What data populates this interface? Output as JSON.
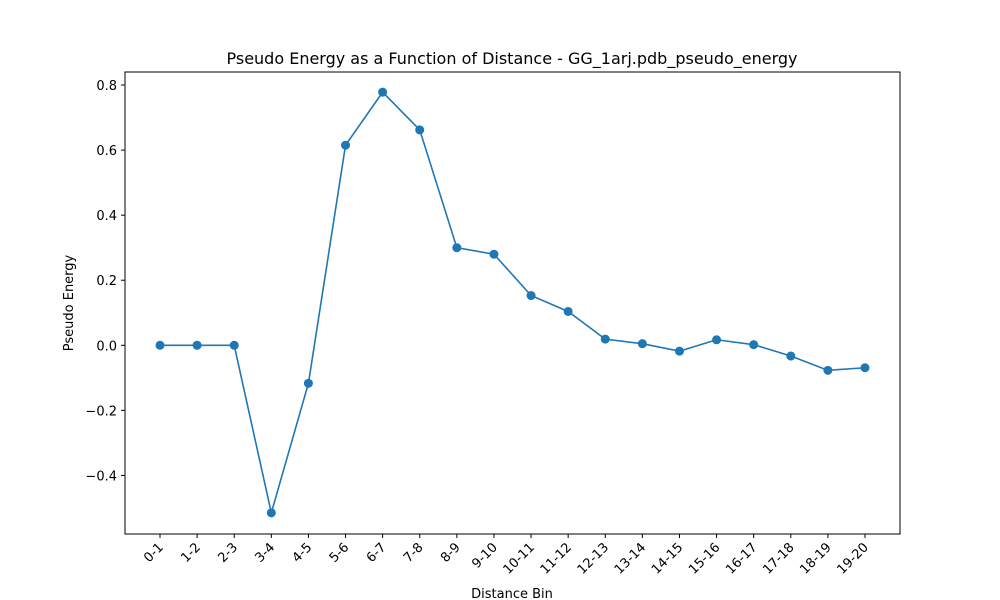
{
  "chart_data": {
    "type": "line",
    "title": "Pseudo Energy as a Function of Distance - GG_1arj.pdb_pseudo_energy",
    "xlabel": "Distance Bin",
    "ylabel": "Pseudo Energy",
    "categories": [
      "0-1",
      "1-2",
      "2-3",
      "3-4",
      "4-5",
      "5-6",
      "6-7",
      "7-8",
      "8-9",
      "9-10",
      "10-11",
      "11-12",
      "12-13",
      "13-14",
      "14-15",
      "15-16",
      "16-17",
      "17-18",
      "18-19",
      "19-20"
    ],
    "series": [
      {
        "values": [
          0.0,
          0.0,
          0.0,
          -0.515,
          -0.117,
          0.615,
          0.778,
          0.662,
          0.3,
          0.28,
          0.153,
          0.104,
          0.019,
          0.005,
          -0.018,
          0.017,
          0.002,
          -0.033,
          -0.077,
          -0.069
        ],
        "color": "#1f77b4",
        "marker": "circle"
      }
    ],
    "ylim": [
      -0.58,
      0.84
    ],
    "yticks": [
      -0.4,
      -0.2,
      0.0,
      0.2,
      0.4,
      0.6,
      0.8
    ],
    "ytick_labels": [
      "−0.4",
      "−0.2",
      "0.0",
      "0.2",
      "0.4",
      "0.6",
      "0.8"
    ],
    "grid": false,
    "legend": "none"
  }
}
